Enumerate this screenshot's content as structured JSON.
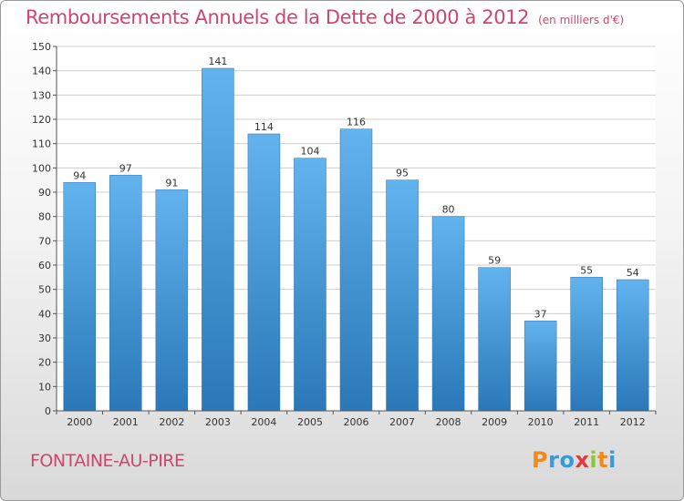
{
  "header": {
    "title": "Remboursements Annuels de la Dette de 2000 à 2012",
    "subtitle": "(en milliers d'€)"
  },
  "footer": {
    "town": "FONTAINE-AU-PIRE",
    "logo_letters": [
      "P",
      "r",
      "o",
      "x",
      "i",
      "t",
      "i"
    ],
    "logo_colors": [
      "#f08a1c",
      "#3a9ad9",
      "#3a9ad9",
      "#e23b3b",
      "#8cc63f",
      "#f08a1c",
      "#3a9ad9"
    ]
  },
  "colors": {
    "title": "#d0456e",
    "bar_top": "#62b3ee",
    "bar_bottom": "#2a78b8",
    "grid": "#cfcfcf",
    "axis": "#555555"
  },
  "chart_data": {
    "type": "bar",
    "categories": [
      "2000",
      "2001",
      "2002",
      "2003",
      "2004",
      "2005",
      "2006",
      "2007",
      "2008",
      "2009",
      "2010",
      "2011",
      "2012"
    ],
    "values": [
      94,
      97,
      91,
      141,
      114,
      104,
      116,
      95,
      80,
      59,
      37,
      55,
      54
    ],
    "title": "Remboursements Annuels de la Dette de 2000 à 2012",
    "subtitle": "(en milliers d'€)",
    "ylim": [
      0,
      150
    ],
    "ytick_step": 10,
    "grid": true,
    "data_labels": true
  }
}
